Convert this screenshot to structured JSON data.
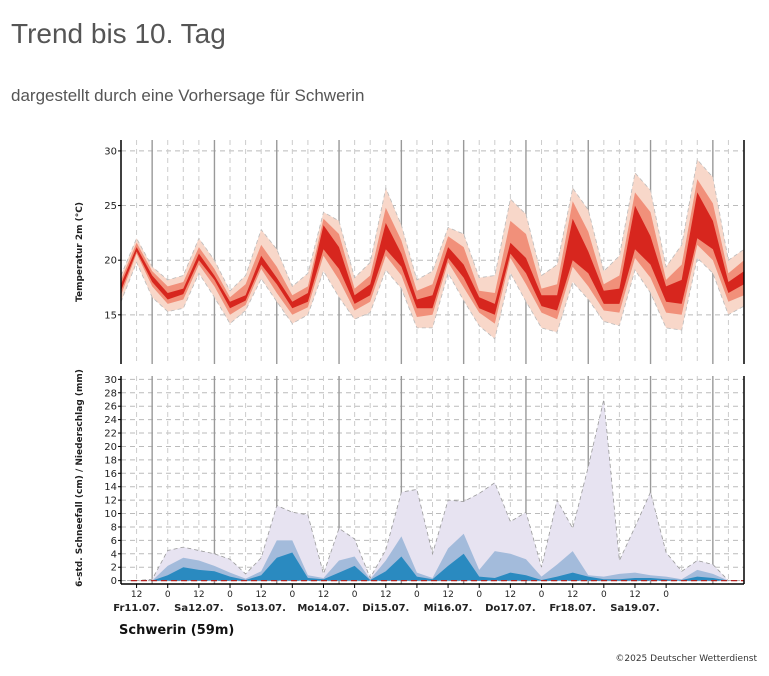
{
  "page": {
    "title": "Trend bis 10. Tag",
    "subtitle": "dargestellt durch eine Vorhersage für Schwerin",
    "station_label": "Schwerin (59m)",
    "copyright": "©2025 Deutscher Wetterdienst"
  },
  "chart_data": [
    {
      "type": "area",
      "ylabel": "Temperatur 2m (°C)",
      "ylim": [
        10.5,
        31
      ],
      "yticks": [
        15,
        20,
        25,
        30
      ],
      "grid": true,
      "day_labels": [
        "Fr11.07.",
        "Sa12.07.",
        "So13.07.",
        "Mo14.07.",
        "Di15.07.",
        "Mi16.07.",
        "Do17.07.",
        "Fr18.07.",
        "Sa19.07."
      ],
      "hour_labels": [
        "12",
        "0",
        "12",
        "0",
        "12",
        "0",
        "12",
        "0",
        "12",
        "0",
        "12",
        "0",
        "12",
        "0",
        "12",
        "0",
        "12",
        "0"
      ],
      "x_hours": [
        0,
        6,
        12,
        18,
        24,
        30,
        36,
        42,
        48,
        54,
        60,
        66,
        72,
        78,
        84,
        90,
        96,
        102,
        108,
        114,
        120,
        126,
        132,
        138,
        144,
        150,
        156,
        162,
        168,
        174,
        180,
        186,
        192,
        198,
        204,
        210,
        216,
        222,
        228,
        234,
        240
      ],
      "colors": {
        "outer": "#f8d7c9",
        "middle": "#f1907a",
        "inner": "#d7261e",
        "edge": "#bbbbbb"
      },
      "bands": {
        "outer_low": [
          16.2,
          19.8,
          16.6,
          15.3,
          15.6,
          18.8,
          16.6,
          14.2,
          15.4,
          18.3,
          16.2,
          14.2,
          15.0,
          19.0,
          16.6,
          14.6,
          15.2,
          19.1,
          17.4,
          13.8,
          13.8,
          18.8,
          16.3,
          14.0,
          12.8,
          18.8,
          16.2,
          13.8,
          13.4,
          18.0,
          16.4,
          14.4,
          14.0,
          19.1,
          17.0,
          13.8,
          13.6,
          20.2,
          18.8,
          15.0,
          15.8
        ],
        "middle_low": [
          16.8,
          20.6,
          17.6,
          16.0,
          16.4,
          19.6,
          17.6,
          15.0,
          15.9,
          19.2,
          17.0,
          15.0,
          15.7,
          20.4,
          18.2,
          15.4,
          16.2,
          20.4,
          18.6,
          14.8,
          15.0,
          19.8,
          17.5,
          15.2,
          14.2,
          20.2,
          17.8,
          15.2,
          14.6,
          19.4,
          17.6,
          15.4,
          15.2,
          20.2,
          18.4,
          15.2,
          15.0,
          21.4,
          20.0,
          16.2,
          16.8
        ],
        "inner_low": [
          17.2,
          20.8,
          18.0,
          16.4,
          16.9,
          20.0,
          18.2,
          15.6,
          16.3,
          19.6,
          17.8,
          15.6,
          16.2,
          21.0,
          19.2,
          16.0,
          16.8,
          21.0,
          19.4,
          15.6,
          15.6,
          20.2,
          18.4,
          15.6,
          15.0,
          20.6,
          18.8,
          15.8,
          15.4,
          20.0,
          18.8,
          16.0,
          16.0,
          21.0,
          19.6,
          16.2,
          16.0,
          22.0,
          21.0,
          17.0,
          17.8
        ],
        "inner_high": [
          17.8,
          21.2,
          18.6,
          17.0,
          17.4,
          20.6,
          18.6,
          16.2,
          16.8,
          20.4,
          18.4,
          16.2,
          17.0,
          23.2,
          21.2,
          16.8,
          17.8,
          23.4,
          20.6,
          16.4,
          16.8,
          21.2,
          19.6,
          16.6,
          16.0,
          21.6,
          20.2,
          16.8,
          16.8,
          23.8,
          20.8,
          17.2,
          17.4,
          25.0,
          22.2,
          17.6,
          18.2,
          26.2,
          23.6,
          18.0,
          19.0
        ],
        "middle_high": [
          18.2,
          21.6,
          19.0,
          17.6,
          18.0,
          21.2,
          19.2,
          16.6,
          17.8,
          21.4,
          19.4,
          16.8,
          17.6,
          23.8,
          22.4,
          17.4,
          18.6,
          24.8,
          21.8,
          17.2,
          17.8,
          22.2,
          21.2,
          17.2,
          17.0,
          23.6,
          22.4,
          17.4,
          17.8,
          25.4,
          22.6,
          17.8,
          18.6,
          26.2,
          24.4,
          18.2,
          19.6,
          27.4,
          25.2,
          18.8,
          20.0
        ],
        "outer_high": [
          18.6,
          22.0,
          19.4,
          18.2,
          18.6,
          22.0,
          20.0,
          17.2,
          18.6,
          22.8,
          21.0,
          17.6,
          18.8,
          24.4,
          23.6,
          18.4,
          19.8,
          26.6,
          23.2,
          18.2,
          19.0,
          23.0,
          22.4,
          18.4,
          18.6,
          25.6,
          24.2,
          18.6,
          19.6,
          26.6,
          24.6,
          19.0,
          20.4,
          28.0,
          26.4,
          19.4,
          21.4,
          29.2,
          27.6,
          20.0,
          21.0
        ]
      }
    },
    {
      "type": "area",
      "ylabel": "6-std. Schneefall (cm) / Niederschlag (mm)",
      "ylim": [
        -0.5,
        30.5
      ],
      "yticks": [
        0,
        2,
        4,
        6,
        8,
        10,
        12,
        14,
        16,
        18,
        20,
        22,
        24,
        26,
        28,
        30
      ],
      "grid": true,
      "x_hours": [
        0,
        6,
        12,
        18,
        24,
        30,
        36,
        42,
        48,
        54,
        60,
        66,
        72,
        78,
        84,
        90,
        96,
        102,
        108,
        114,
        120,
        126,
        132,
        138,
        144,
        150,
        156,
        162,
        168,
        174,
        180,
        186,
        192,
        198,
        204,
        210,
        216,
        222,
        228,
        234,
        240
      ],
      "colors": {
        "outer": "#e7e3f1",
        "middle": "#a3bbdb",
        "inner": "#2a8ac0",
        "edge": "#999999",
        "zero_line": "#b22222"
      },
      "bands": {
        "outer_high": [
          0,
          0,
          0.2,
          4.5,
          5.0,
          4.5,
          4.0,
          3.2,
          1.0,
          3.4,
          11.2,
          10.2,
          9.8,
          1.0,
          7.8,
          6.2,
          0.4,
          4.6,
          13.2,
          13.6,
          4.0,
          12.0,
          11.8,
          13.0,
          14.6,
          8.8,
          10.2,
          2.0,
          12.0,
          7.8,
          17.0,
          27.0,
          3.0,
          8.0,
          13.2,
          4.2,
          1.4,
          3.0,
          2.4,
          0,
          0
        ],
        "middle_high": [
          0,
          0,
          0,
          2.2,
          3.4,
          3.0,
          2.2,
          1.2,
          0.3,
          1.4,
          6.0,
          6.0,
          0.8,
          0.4,
          3.0,
          3.6,
          0.2,
          3.0,
          6.6,
          1.2,
          0.4,
          4.8,
          7.0,
          1.6,
          4.4,
          4.0,
          3.2,
          0.6,
          2.4,
          4.4,
          0.8,
          0.6,
          1.0,
          1.2,
          0.8,
          0.6,
          0.2,
          1.6,
          1.0,
          0,
          0
        ],
        "inner_high": [
          0,
          0,
          0,
          0.8,
          2.0,
          1.6,
          1.4,
          0.6,
          0.1,
          0.8,
          3.4,
          4.2,
          0.4,
          0.2,
          1.2,
          2.2,
          0.1,
          1.4,
          3.6,
          0.6,
          0.2,
          2.2,
          4.0,
          0.6,
          0.4,
          1.2,
          0.8,
          0.1,
          0.6,
          1.2,
          0.6,
          0.2,
          0.2,
          0.4,
          0.4,
          0.2,
          0.1,
          0.6,
          0.4,
          0,
          0
        ]
      }
    }
  ]
}
